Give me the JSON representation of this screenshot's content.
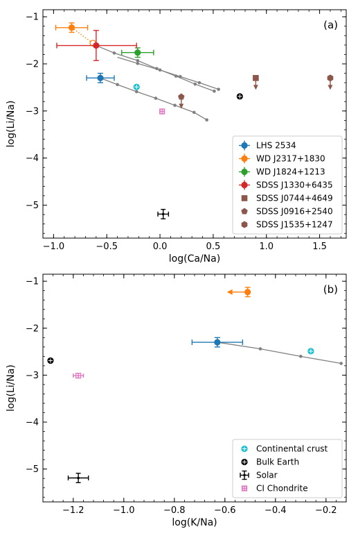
{
  "chart_data": [
    {
      "type": "scatter",
      "panel_label": "(a)",
      "xlabel": "log(Ca/Na)",
      "ylabel": "log(Li/Na)",
      "xlim": [
        -1.1,
        1.75
      ],
      "ylim": [
        -5.7,
        -0.85
      ],
      "xticks": [
        -1.0,
        -0.5,
        0.0,
        0.5,
        1.0,
        1.5
      ],
      "xtick_labels": [
        "−1.0",
        "−0.5",
        "0.0",
        "0.5",
        "1.0",
        "1.5"
      ],
      "yticks": [
        -5,
        -4,
        -3,
        -2,
        -1
      ],
      "ytick_labels": [
        "−5",
        "−4",
        "−3",
        "−2",
        "−1"
      ],
      "legend_position": "lower-right",
      "series": [
        {
          "name": "LHS 2534",
          "color": "#1f77b4",
          "marker": "circle",
          "x": -0.56,
          "y": -2.3,
          "xerr": 0.13,
          "yerr": 0.1
        },
        {
          "name": "WD J2317+1830",
          "color": "#ff7f0e",
          "marker": "circle",
          "x": -0.83,
          "y": -1.23,
          "xerr": 0.15,
          "yerr": 0.1
        },
        {
          "name": "WD J1824+1213",
          "color": "#2ca02c",
          "marker": "circle",
          "x": -0.21,
          "y": -1.76,
          "xerr": 0.15,
          "yerr": 0.1
        },
        {
          "name": "SDSS J1330+6435",
          "color": "#d62728",
          "marker": "circle",
          "x": -0.6,
          "y": -1.61,
          "xerr_minus": 0.37,
          "xerr_plus": 0.38,
          "yerr": 0.32
        },
        {
          "name": "SDSS J0744+4649",
          "color": "#8c564b",
          "marker": "square",
          "x": 0.9,
          "y": -2.3,
          "upper_limit": true
        },
        {
          "name": "SDSS J0916+2540",
          "color": "#8c564b",
          "marker": "pentagon",
          "x": 0.2,
          "y": -2.7,
          "upper_limit": true
        },
        {
          "name": "SDSS J1535+1247",
          "color": "#8c564b",
          "marker": "hexagon",
          "x": 1.6,
          "y": -2.3,
          "upper_limit": true
        }
      ],
      "reference_points": [
        {
          "name": "Continental crust",
          "x": -0.22,
          "y": -2.49,
          "color": "#17becf"
        },
        {
          "name": "Bulk Earth",
          "x": 0.75,
          "y": -2.69,
          "color": "#000000"
        },
        {
          "name": "Solar",
          "x": 0.03,
          "y": -5.19,
          "xerr": 0.05,
          "yerr": 0.1,
          "color": "#000000"
        },
        {
          "name": "CI Chondrite",
          "x": 0.02,
          "y": -3.01,
          "xerr": 0.02,
          "yerr": 0.05,
          "color": "#e377c2"
        }
      ],
      "open_point": {
        "x": -0.63,
        "y": -1.56,
        "color": "#ff7f0e"
      },
      "dotted_link": {
        "x": [
          -0.83,
          -0.63
        ],
        "y": [
          -1.23,
          -1.56
        ],
        "color": "#ff7f0e"
      },
      "tracks": [
        {
          "x": [
            -0.56,
            -0.4,
            -0.22,
            -0.04,
            0.14,
            0.32,
            0.44
          ],
          "y": [
            -2.3,
            -2.44,
            -2.59,
            -2.73,
            -2.88,
            -3.03,
            -3.19
          ],
          "color": "#808080"
        },
        {
          "x": [
            -0.6,
            -0.43,
            -0.21,
            -0.03,
            0.15,
            0.33,
            0.51
          ],
          "y": [
            -1.61,
            -1.77,
            -1.93,
            -2.1,
            -2.26,
            -2.43,
            -2.58
          ],
          "color": "#808080"
        },
        {
          "x": [
            -0.4,
            -0.21,
            0.0,
            0.19,
            0.37,
            0.55
          ],
          "y": [
            -1.86,
            -1.99,
            -2.13,
            -2.27,
            -2.4,
            -2.54
          ],
          "color": "#808080"
        }
      ],
      "legend": [
        "LHS 2534",
        "WD J2317+1830",
        "WD J1824+1213",
        "SDSS J1330+6435",
        "SDSS J0744+4649",
        "SDSS J0916+2540",
        "SDSS J1535+1247"
      ]
    },
    {
      "type": "scatter",
      "panel_label": "(b)",
      "xlabel": "log(K/Na)",
      "ylabel": "log(Li/Na)",
      "xlim": [
        -1.32,
        -0.12
      ],
      "ylim": [
        -5.7,
        -0.85
      ],
      "xticks": [
        -1.2,
        -1.0,
        -0.8,
        -0.6,
        -0.4,
        -0.2
      ],
      "xtick_labels": [
        "−1.2",
        "−1.0",
        "−0.8",
        "−0.6",
        "−0.4",
        "−0.2"
      ],
      "yticks": [
        -5,
        -4,
        -3,
        -2,
        -1
      ],
      "ytick_labels": [
        "−5",
        "−4",
        "−3",
        "−2",
        "−1"
      ],
      "legend_position": "lower-right",
      "series": [
        {
          "name": "LHS 2534",
          "color": "#1f77b4",
          "marker": "circle",
          "x": -0.63,
          "y": -2.3,
          "xerr": 0.1,
          "yerr": 0.1
        },
        {
          "name": "WD J2317+1830",
          "color": "#ff7f0e",
          "marker": "circle",
          "x": -0.51,
          "y": -1.23,
          "yerr": 0.1,
          "lower_limit_x": true
        }
      ],
      "reference_points": [
        {
          "name": "Continental crust",
          "x": -0.26,
          "y": -2.49,
          "color": "#17becf"
        },
        {
          "name": "Bulk Earth",
          "x": -1.29,
          "y": -2.69,
          "color": "#000000"
        },
        {
          "name": "Solar",
          "x": -1.18,
          "y": -5.19,
          "xerr": 0.04,
          "yerr": 0.1,
          "color": "#000000"
        },
        {
          "name": "CI Chondrite",
          "x": -1.18,
          "y": -3.01,
          "xerr": 0.02,
          "yerr": 0.05,
          "color": "#e377c2"
        }
      ],
      "tracks": [
        {
          "x": [
            -0.63,
            -0.46,
            -0.3,
            -0.14
          ],
          "y": [
            -2.3,
            -2.44,
            -2.6,
            -2.75
          ],
          "color": "#808080"
        }
      ],
      "legend": [
        "Continental crust",
        "Bulk Earth",
        "Solar",
        "CI Chondrite"
      ]
    }
  ]
}
